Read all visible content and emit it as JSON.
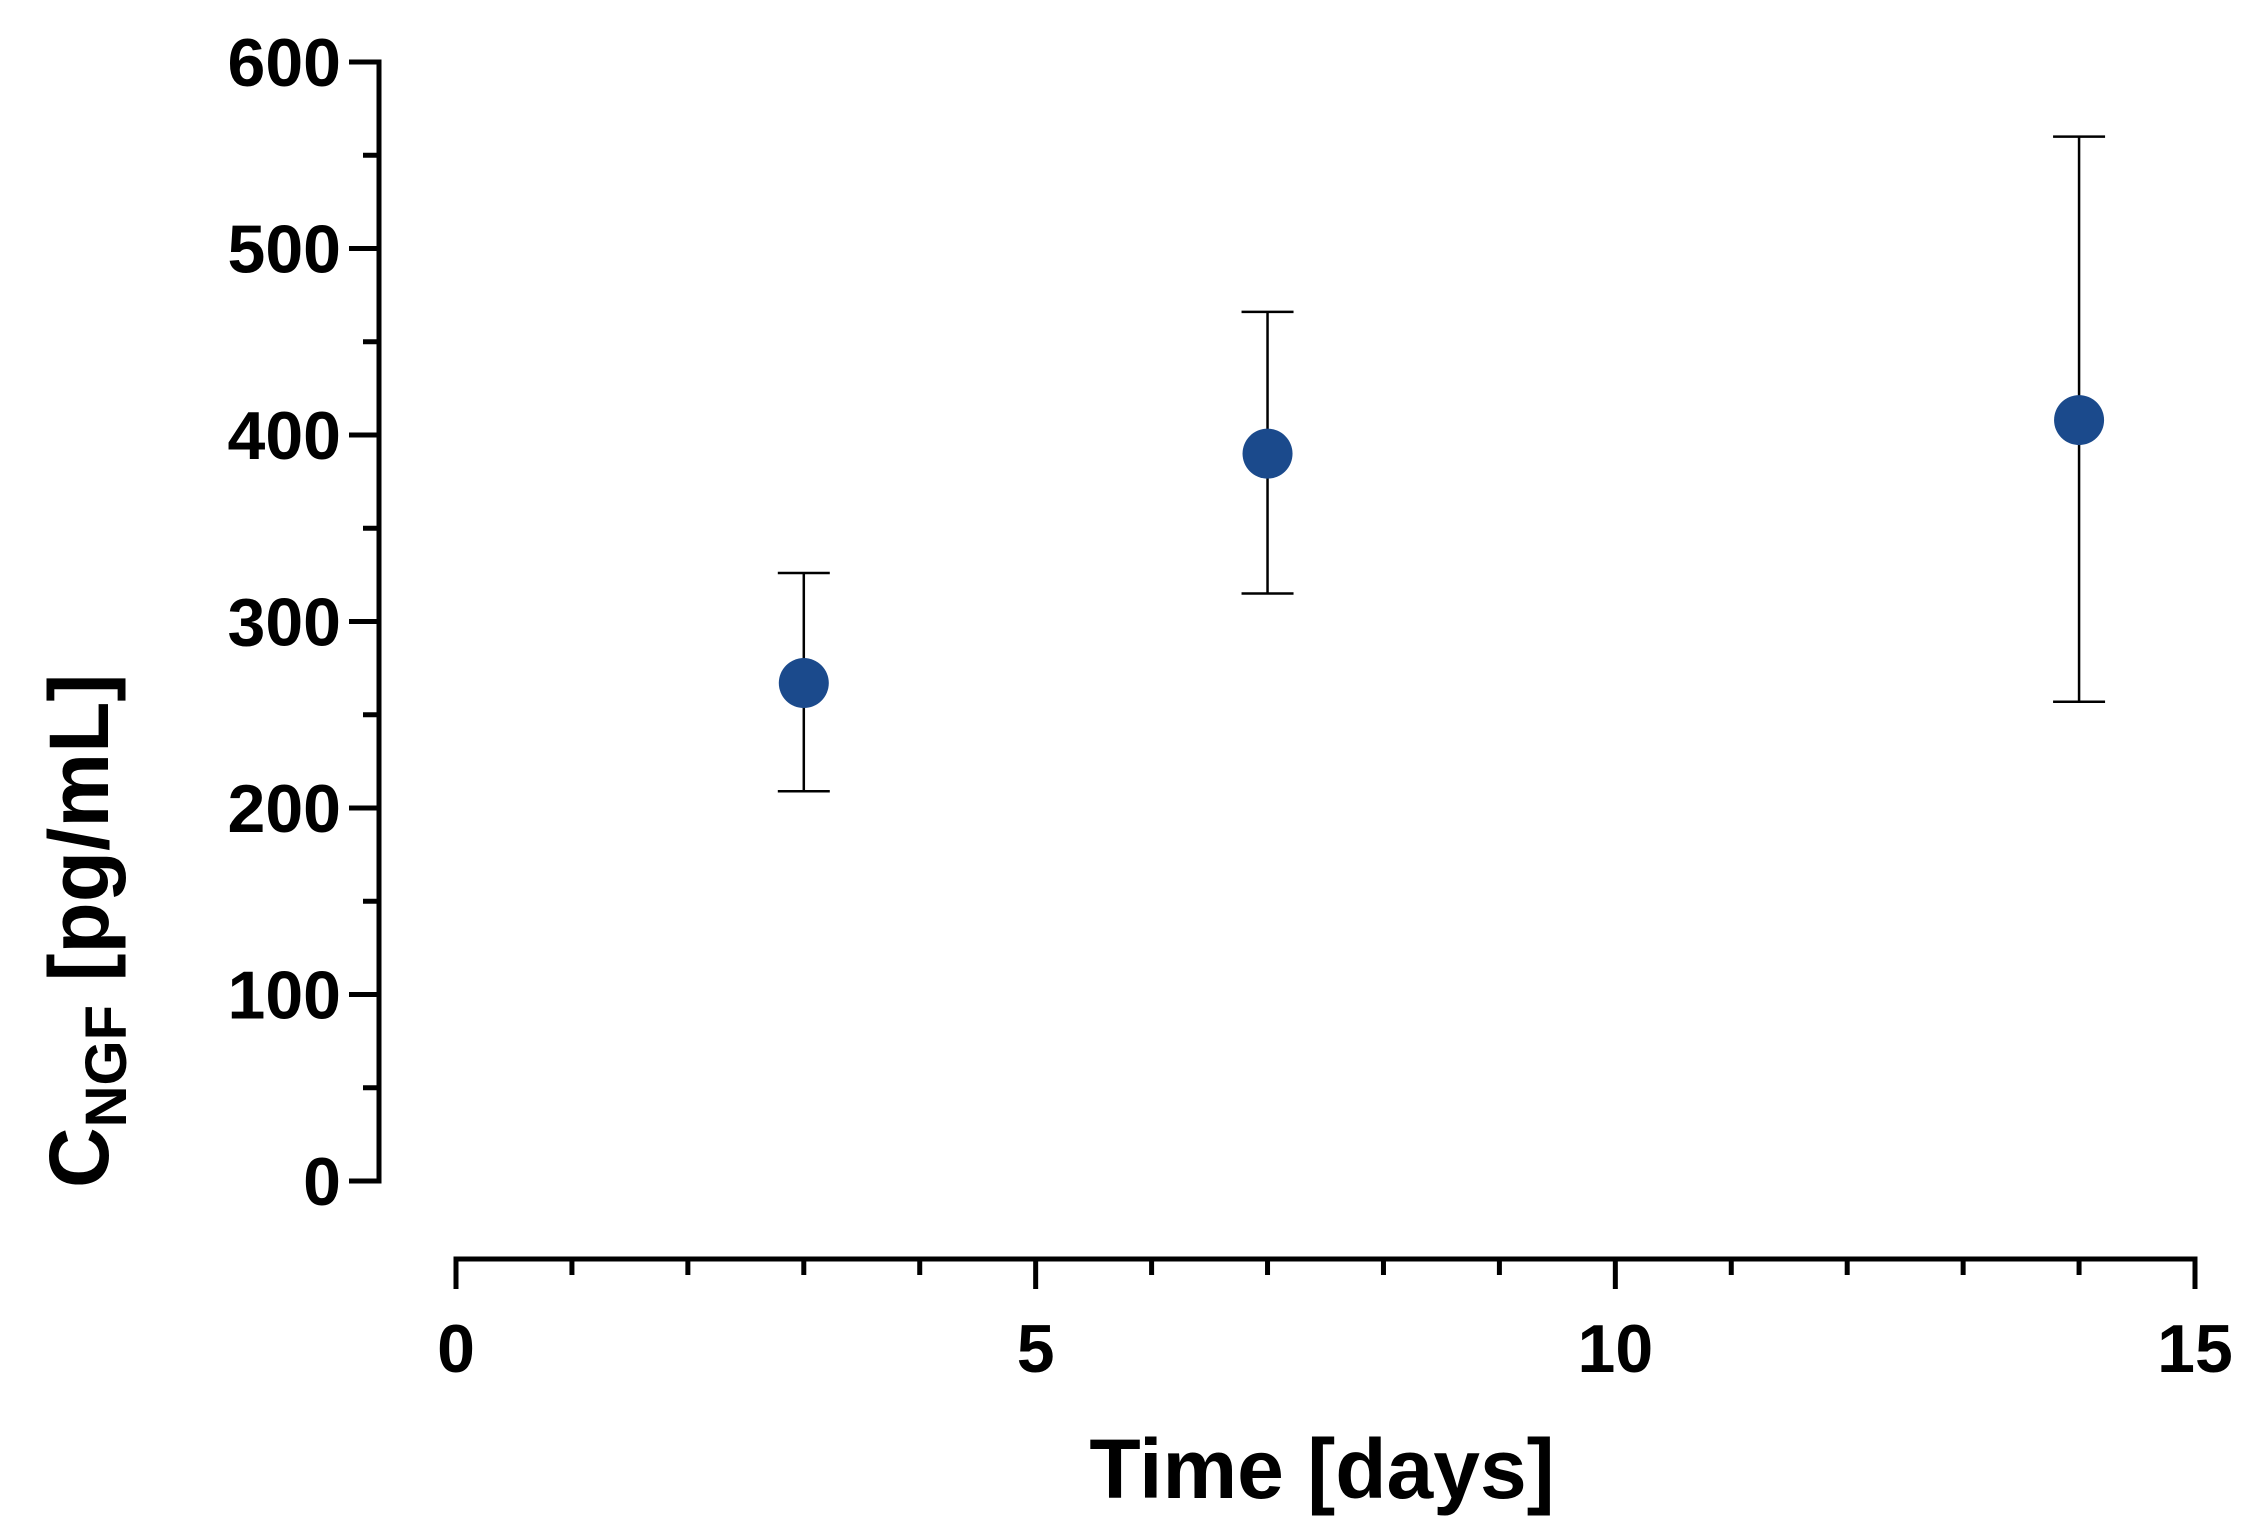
{
  "chart_data": {
    "type": "scatter",
    "title": "",
    "xlabel": "Time [days]",
    "ylabel": {
      "base": "C",
      "subscript": "NGF",
      "rest": " [pg/mL]"
    },
    "xlim": [
      0,
      15
    ],
    "ylim": [
      0,
      600
    ],
    "x_ticks": [
      "0",
      "5",
      "10",
      "15"
    ],
    "y_ticks": [
      "0",
      "100",
      "200",
      "300",
      "400",
      "500",
      "600"
    ],
    "x_minor_step": 1,
    "y_minor_step": 50,
    "grid": false,
    "legend": "none",
    "marker_color": "#1b4a8c",
    "series": [
      {
        "points": [
          {
            "x": 3,
            "y": 267,
            "err_low": 209,
            "err_high": 326
          },
          {
            "x": 7,
            "y": 390,
            "err_low": 315,
            "err_high": 466
          },
          {
            "x": 14,
            "y": 408,
            "err_low": 257,
            "err_high": 560
          }
        ]
      }
    ]
  }
}
